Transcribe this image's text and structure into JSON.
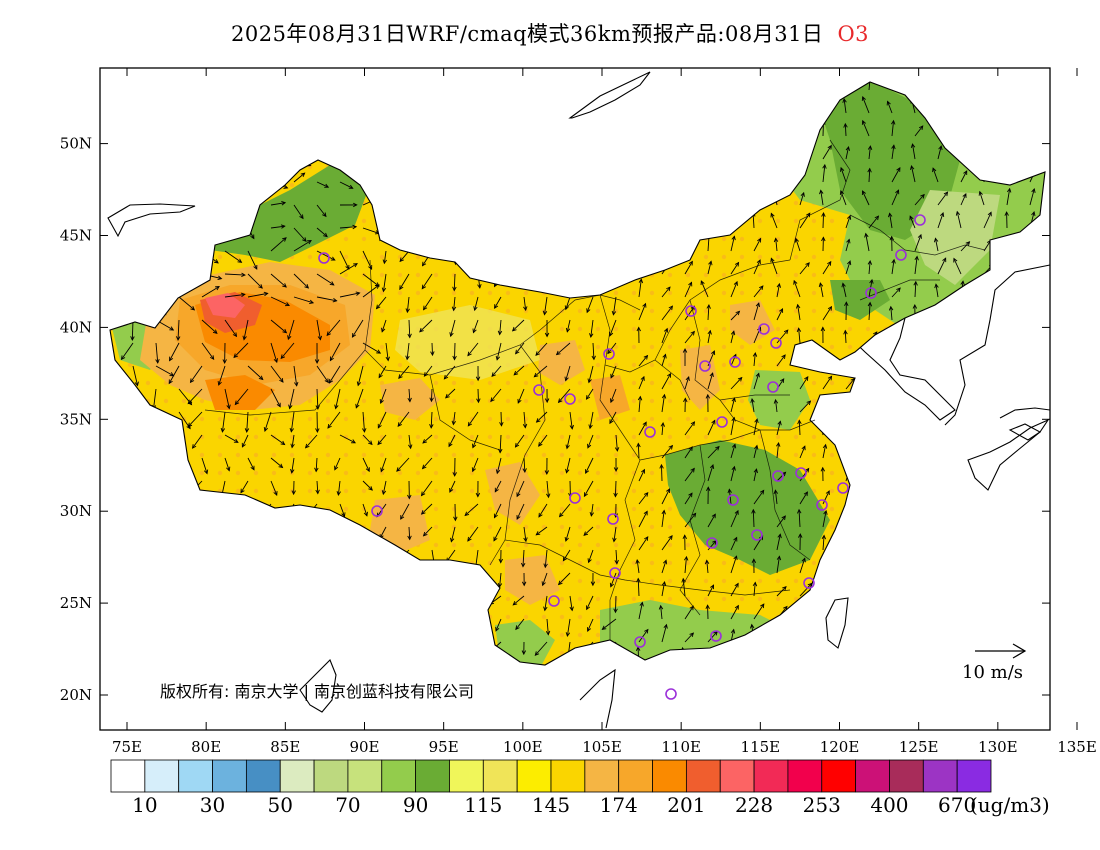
{
  "title": {
    "main": "2025年08月31日WRF/cmaq模式36km预报产品:08月31日",
    "pollutant": "O3"
  },
  "axes": {
    "x_ticks": [
      "75E",
      "80E",
      "85E",
      "90E",
      "95E",
      "100E",
      "105E",
      "110E",
      "115E",
      "120E",
      "125E",
      "130E",
      "135E"
    ],
    "y_ticks": [
      "20N",
      "25N",
      "30N",
      "35N",
      "40N",
      "45N",
      "50N"
    ]
  },
  "copyright": "版权所有: 南京大学 | 南京创蓝科技有限公司",
  "wind_scale": {
    "label": "10 m/s"
  },
  "colorbar": {
    "unit": "(ug/m3)",
    "labels": [
      "10",
      "30",
      "50",
      "70",
      "90",
      "115",
      "145",
      "174",
      "201",
      "228",
      "253",
      "400",
      "670"
    ],
    "colors": [
      "#ffffff",
      "#d6eefa",
      "#9fd8f4",
      "#6cb2de",
      "#478fc4",
      "#dcebc0",
      "#bdd97f",
      "#c7e27c",
      "#93cc4c",
      "#6aac34",
      "#f0f65a",
      "#f0e458",
      "#fced00",
      "#fad500",
      "#f5b544",
      "#f7a72a",
      "#fa8a00",
      "#f05e2e",
      "#fc6464",
      "#f22a56",
      "#f2004c",
      "#ff0000",
      "#cc1177",
      "#a82c5a",
      "#9c34c4",
      "#8a2be2"
    ]
  }
}
